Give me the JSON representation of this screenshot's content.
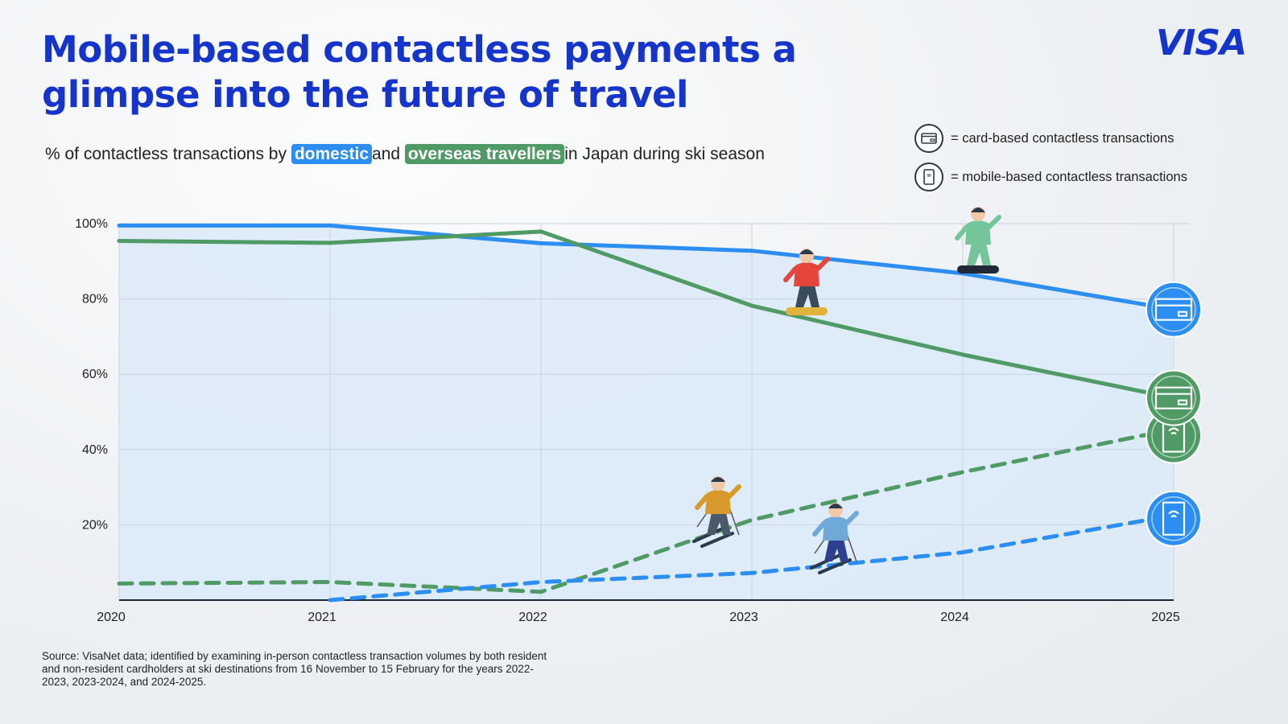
{
  "header": {
    "title": "Mobile-based contactless payments a glimpse into the future of travel",
    "logo_text": "VISA",
    "subtitle_prefix": "% of contactless transactions by",
    "subtitle_domestic": "domestic",
    "subtitle_and": "and",
    "subtitle_overseas": "overseas travellers",
    "subtitle_suffix": "in Japan during ski season"
  },
  "legend": {
    "card": {
      "icon": "card-icon",
      "label": "= card-based contactless transactions"
    },
    "mobile": {
      "icon": "mobile-phone-icon",
      "label": "= mobile-based contactless transactions"
    }
  },
  "colors": {
    "brand": "#1434cb",
    "domestic": "#2b8ef0",
    "overseas": "#4f9a65",
    "area_fill": "#dbeaf8"
  },
  "chart_data": {
    "type": "line",
    "x": [
      "2020",
      "2021",
      "2022",
      "2023",
      "2024",
      "2025"
    ],
    "yticks": [
      "20%",
      "40%",
      "60%",
      "80%",
      "100%"
    ],
    "ylim": [
      0,
      100
    ],
    "grid": true,
    "series": [
      {
        "values": [
          99.5,
          99.5,
          94.8,
          92.8,
          86.8,
          77.2
        ],
        "color": "#2b8ef0",
        "dashed": false,
        "end_icon": "card-icon"
      },
      {
        "values": [
          95.4,
          94.9,
          97.9,
          78.2,
          65.2,
          53.7
        ],
        "color": "#4f9a65",
        "dashed": false,
        "end_icon": "card-icon"
      },
      {
        "values": [
          4.4,
          4.8,
          2.2,
          21.3,
          34.0,
          45.4
        ],
        "color": "#4f9a65",
        "dashed": true,
        "end_icon": "mobile-phone-icon"
      },
      {
        "values": [
          null,
          0.0,
          4.8,
          7.2,
          12.7,
          22.5
        ],
        "color": "#2b8ef0",
        "dashed": true,
        "end_icon": "mobile-phone-icon"
      }
    ]
  },
  "footer": {
    "source": "Source: VisaNet data; identified by examining in-person contactless transaction volumes by both resident and non-resident cardholders at ski destinations from 16 November to 15 February for the years 2022-2023, 2023-2024, and 2024-2025."
  }
}
